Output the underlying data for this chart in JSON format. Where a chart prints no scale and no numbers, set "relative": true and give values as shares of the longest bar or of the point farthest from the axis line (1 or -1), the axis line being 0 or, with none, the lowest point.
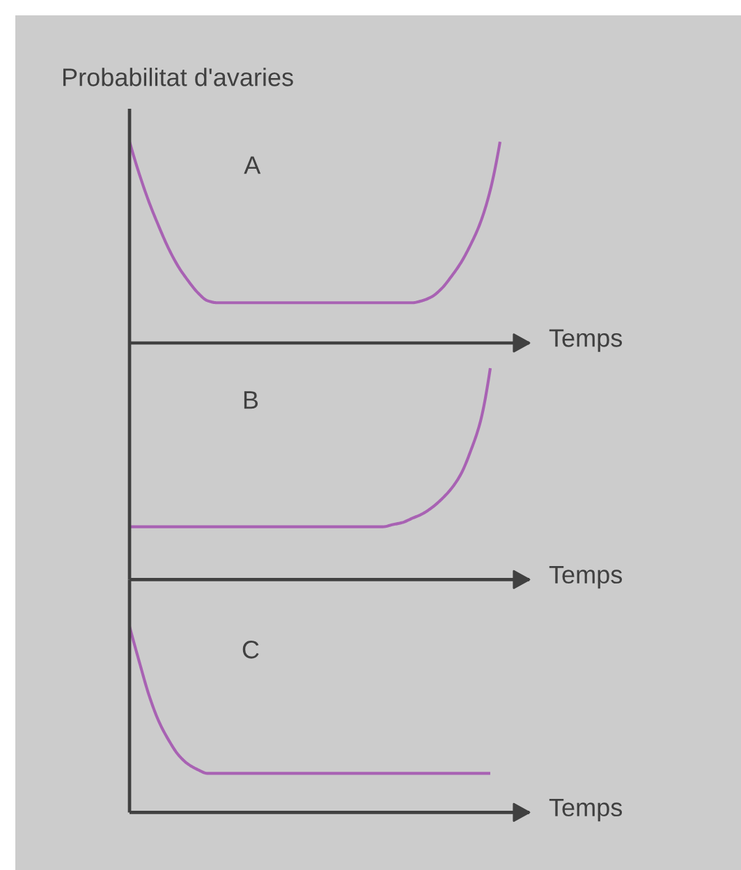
{
  "chart_data": [
    {
      "type": "line",
      "title": "A",
      "xlabel": "Temps",
      "ylabel": "Probabilitat d'avaries",
      "relative": true,
      "categories": [
        null,
        null,
        null,
        null,
        null,
        null,
        null,
        null,
        null,
        null,
        null,
        null,
        null,
        null,
        null,
        null,
        null,
        null,
        null,
        null,
        null,
        null,
        null,
        null,
        null,
        null,
        null,
        null,
        null,
        null,
        null,
        null,
        null,
        null,
        null,
        null,
        null,
        null,
        null,
        null,
        null,
        null
      ],
      "series": [
        {
          "color": "#a862b3",
          "values": [
            1.0,
            0.84,
            0.7,
            0.58,
            0.47,
            0.38,
            0.31,
            0.25,
            0.21,
            0.2,
            0.2,
            0.2,
            0.2,
            0.2,
            0.2,
            0.2,
            0.2,
            0.2,
            0.2,
            0.2,
            0.2,
            0.2,
            0.2,
            0.2,
            0.2,
            0.2,
            0.2,
            0.2,
            0.2,
            0.2,
            0.21,
            0.23,
            0.27,
            0.33,
            0.4,
            0.49,
            0.6,
            0.76,
            1.0,
            null,
            null,
            null
          ]
        }
      ]
    },
    {
      "type": "line",
      "title": "B",
      "xlabel": "Temps",
      "relative": true,
      "categories": [
        null,
        null,
        null,
        null,
        null,
        null,
        null,
        null,
        null,
        null,
        null,
        null,
        null,
        null,
        null,
        null,
        null,
        null,
        null,
        null,
        null,
        null,
        null,
        null,
        null,
        null,
        null,
        null,
        null,
        null,
        null,
        null,
        null,
        null,
        null,
        null,
        null,
        null,
        null,
        null,
        null,
        null
      ],
      "series": [
        {
          "color": "#a862b3",
          "values": [
            0.25,
            0.25,
            0.25,
            0.25,
            0.25,
            0.25,
            0.25,
            0.25,
            0.25,
            0.25,
            0.25,
            0.25,
            0.25,
            0.25,
            0.25,
            0.25,
            0.25,
            0.25,
            0.25,
            0.25,
            0.25,
            0.25,
            0.25,
            0.25,
            0.25,
            0.25,
            0.25,
            0.26,
            0.27,
            0.29,
            0.31,
            0.34,
            0.38,
            0.43,
            0.5,
            0.61,
            0.75,
            1.0,
            null,
            null,
            null,
            null
          ]
        }
      ]
    },
    {
      "type": "line",
      "title": "C",
      "xlabel": "Temps",
      "relative": true,
      "categories": [
        null,
        null,
        null,
        null,
        null,
        null,
        null,
        null,
        null,
        null,
        null,
        null,
        null,
        null,
        null,
        null,
        null,
        null,
        null,
        null,
        null,
        null,
        null,
        null,
        null,
        null,
        null,
        null,
        null,
        null,
        null,
        null,
        null,
        null,
        null,
        null,
        null,
        null,
        null,
        null,
        null,
        null
      ],
      "series": [
        {
          "color": "#a862b3",
          "values": [
            1.0,
            0.81,
            0.63,
            0.49,
            0.39,
            0.31,
            0.26,
            0.23,
            0.21,
            0.21,
            0.21,
            0.21,
            0.21,
            0.21,
            0.21,
            0.21,
            0.21,
            0.21,
            0.21,
            0.21,
            0.21,
            0.21,
            0.21,
            0.21,
            0.21,
            0.21,
            0.21,
            0.21,
            0.21,
            0.21,
            0.21,
            0.21,
            0.21,
            0.21,
            0.21,
            0.21,
            0.21,
            0.21,
            null,
            null,
            null,
            null
          ]
        }
      ]
    }
  ]
}
